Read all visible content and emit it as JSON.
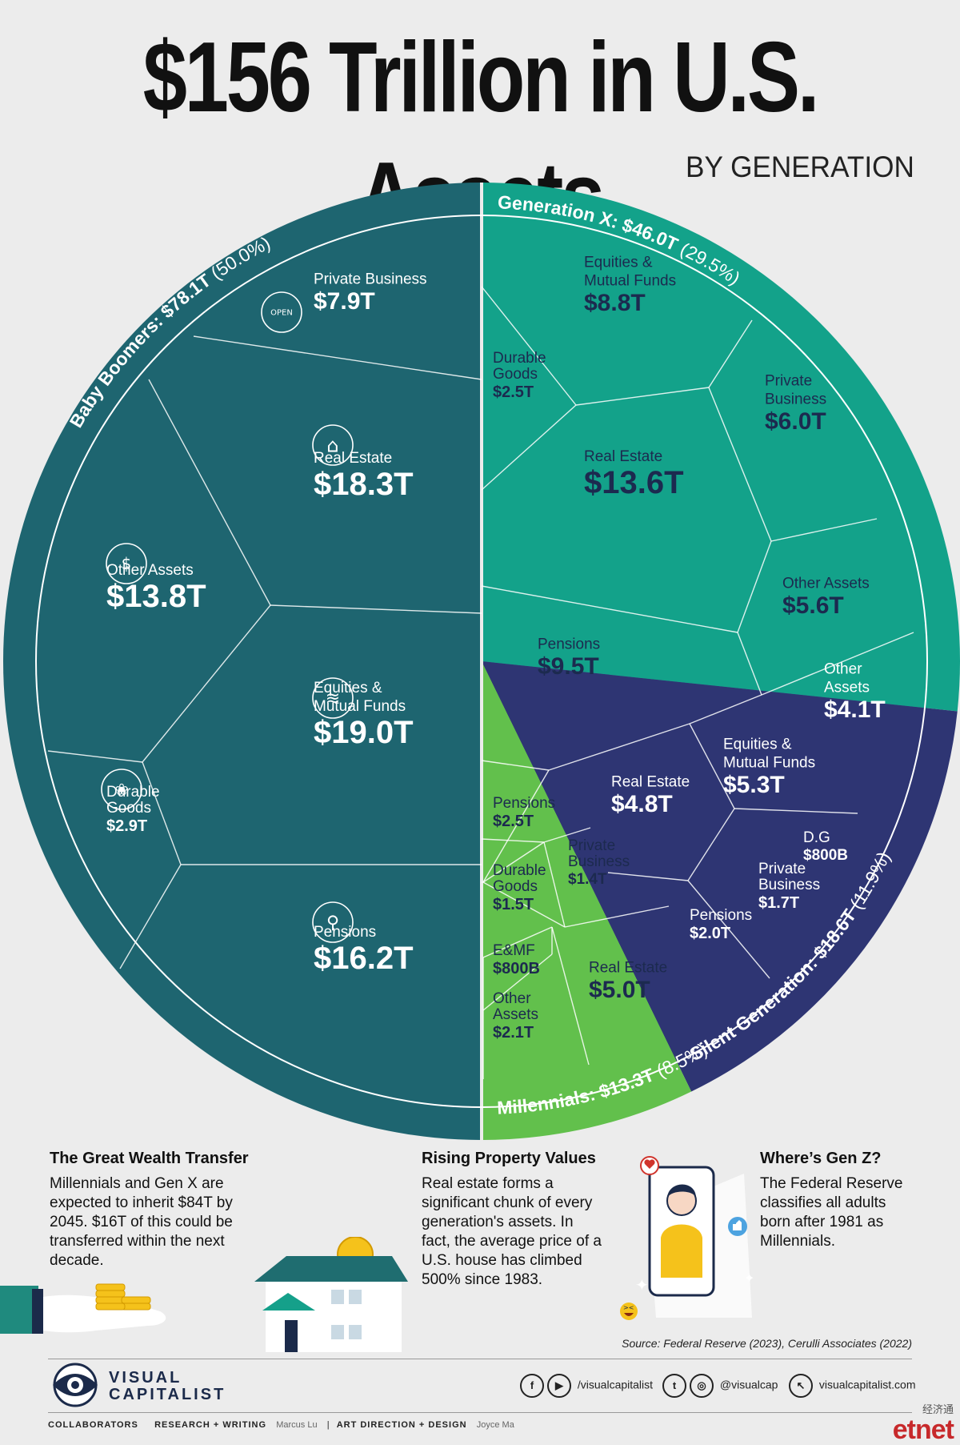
{
  "header": {
    "title": "$156 Trillion in U.S. Assets",
    "subtitle": "BY GENERATION"
  },
  "chart_data": {
    "type": "pie",
    "title": "$156 Trillion in U.S. Assets",
    "subtitle": "BY GENERATION",
    "unit": "trillion USD",
    "total": 156,
    "generations": [
      {
        "name": "Baby Boomers",
        "total_label": "$78.1T",
        "pct_label": "(50.0%)",
        "value": 78.1,
        "percent": 50.0,
        "color": "#1e6570",
        "rim_color": "#1e6570",
        "text_color": "#ffffff",
        "assets": [
          {
            "name": "Private Business",
            "label": "$7.9T",
            "value": 7.9
          },
          {
            "name": "Real Estate",
            "label": "$18.3T",
            "value": 18.3
          },
          {
            "name": "Other Assets",
            "label": "$13.8T",
            "value": 13.8
          },
          {
            "name": "Equities & Mutual Funds",
            "label": "$19.0T",
            "value": 19.0
          },
          {
            "name": "Durable Goods",
            "label": "$2.9T",
            "value": 2.9
          },
          {
            "name": "Pensions",
            "label": "$16.2T",
            "value": 16.2
          }
        ]
      },
      {
        "name": "Generation X",
        "total_label": "$46.0T",
        "pct_label": "(29.5%)",
        "value": 46.0,
        "percent": 29.5,
        "color": "#13a28a",
        "rim_color": "#13a28a",
        "text_color": "#1c2a4f",
        "assets": [
          {
            "name": "Equities & Mutual Funds",
            "label": "$8.8T",
            "value": 8.8
          },
          {
            "name": "Durable Goods",
            "label": "$2.5T",
            "value": 2.5
          },
          {
            "name": "Real Estate",
            "label": "$13.6T",
            "value": 13.6
          },
          {
            "name": "Private Business",
            "label": "$6.0T",
            "value": 6.0
          },
          {
            "name": "Other Assets",
            "label": "$5.6T",
            "value": 5.6
          },
          {
            "name": "Pensions",
            "label": "$9.5T",
            "value": 9.5
          }
        ]
      },
      {
        "name": "Silent Generation",
        "total_label": "$18.6T",
        "pct_label": "(11.9%)",
        "value": 18.6,
        "percent": 11.9,
        "color": "#2e3573",
        "rim_color": "#2e3573",
        "text_color": "#ffffff",
        "assets": [
          {
            "name": "Other Assets",
            "label": "$4.1T",
            "value": 4.1
          },
          {
            "name": "Real Estate",
            "label": "$4.8T",
            "value": 4.8
          },
          {
            "name": "Equities & Mutual Funds",
            "label": "$5.3T",
            "value": 5.3
          },
          {
            "name": "D.G",
            "label": "$800B",
            "value": 0.8
          },
          {
            "name": "Pensions",
            "label": "$2.0T",
            "value": 2.0
          },
          {
            "name": "Private Business",
            "label": "$1.7T",
            "value": 1.7
          }
        ]
      },
      {
        "name": "Millennials",
        "total_label": "$13.3T",
        "pct_label": "(8.5%)",
        "value": 13.3,
        "percent": 8.5,
        "color": "#62c04c",
        "rim_color": "#62c04c",
        "text_color": "#1c2a4f",
        "assets": [
          {
            "name": "Pensions",
            "label": "$2.5T",
            "value": 2.5
          },
          {
            "name": "Private Business",
            "label": "$1.4T",
            "value": 1.4
          },
          {
            "name": "Durable Goods",
            "label": "$1.5T",
            "value": 1.5
          },
          {
            "name": "E&MF",
            "label": "$800B",
            "value": 0.8
          },
          {
            "name": "Real Estate",
            "label": "$5.0T",
            "value": 5.0
          },
          {
            "name": "Other Assets",
            "label": "$2.1T",
            "value": 2.1
          }
        ]
      }
    ]
  },
  "notes": {
    "wealth": {
      "title": "The Great Wealth Transfer",
      "body": "Millennials and Gen X are expected to inherit $84T by 2045. $16T of this could be transferred within the next decade."
    },
    "property": {
      "title": "Rising Property Values",
      "body": "Real estate forms a significant chunk of every generation's assets. In fact, the average price of a U.S. house has climbed 500% since 1983."
    },
    "genz": {
      "title": "Where’s Gen Z?",
      "body": "The Federal Reserve classifies all adults born after 1981 as Millennials."
    }
  },
  "source": "Source: Federal Reserve (2023), Cerulli Associates (2022)",
  "footer": {
    "logo_line1": "VISUAL",
    "logo_line2": "CAPITALIST",
    "social_facebook_youtube": "/visualcapitalist",
    "social_twitter_instagram": "@visualcap",
    "website": "visualcapitalist.com",
    "collaborators_label": "COLLABORATORS",
    "research_label": "RESEARCH + WRITING",
    "research_name": "Marcus Lu",
    "design_label": "ART DIRECTION + DESIGN",
    "design_name": "Joyce Ma",
    "watermark_cn": "经济通",
    "watermark_brand": "etnet"
  }
}
